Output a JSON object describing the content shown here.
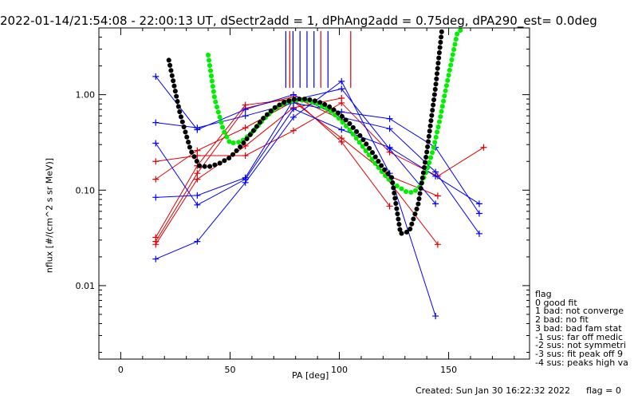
{
  "title": "2022-01-14/21:54:08 - 22:00:13 UT, dSectr2add = 1, dPhAng2add = 0.75deg, dPA290_est=    0.0deg",
  "chart_data": {
    "type": "line",
    "xlabel": "PA [deg]",
    "ylabel": "nflux [#/(cm^2 s sr MeV)]",
    "xlim": [
      -10,
      187
    ],
    "ylim": [
      0.0017,
      5.0
    ],
    "yscale": "log",
    "x_ticks": [
      0,
      50,
      100,
      150
    ],
    "y_ticks": [
      {
        "value": 0.01,
        "label": "0.01"
      },
      {
        "value": 0.1,
        "label": "0.10"
      },
      {
        "value": 1.0,
        "label": "1.00"
      }
    ],
    "series_colors": {
      "blue": "#0000ff",
      "red": "#e00000",
      "fit_black": "#000000",
      "fit_green": "#00ee00"
    },
    "blue_lines": [
      {
        "x": [
          16,
          35,
          57,
          79,
          101,
          123,
          144,
          164
        ],
        "y": [
          1.55,
          0.43,
          0.7,
          1.0,
          0.58,
          0.44,
          0.155,
          0.035
        ]
      },
      {
        "x": [
          16,
          35,
          57,
          79,
          101,
          123,
          144,
          164
        ],
        "y": [
          0.51,
          0.45,
          0.6,
          0.82,
          0.66,
          0.56,
          0.28,
          0.057
        ]
      },
      {
        "x": [
          16,
          35,
          57,
          79,
          101,
          123,
          144,
          164
        ],
        "y": [
          0.31,
          0.07,
          0.13,
          0.71,
          0.43,
          0.28,
          0.14,
          0.072
        ]
      },
      {
        "x": [
          16,
          35,
          57,
          79,
          101,
          123,
          144
        ],
        "y": [
          0.084,
          0.088,
          0.135,
          0.88,
          1.15,
          0.27,
          0.072
        ]
      },
      {
        "x": [
          16,
          35,
          57,
          79,
          101,
          123,
          144
        ],
        "y": [
          0.019,
          0.029,
          0.12,
          0.58,
          1.38,
          0.15,
          0.0048
        ]
      }
    ],
    "red_lines": [
      {
        "x": [
          16,
          35,
          57,
          79,
          101,
          123,
          145,
          166
        ],
        "y": [
          0.2,
          0.23,
          0.23,
          0.42,
          0.82,
          0.25,
          0.14,
          0.28
        ]
      },
      {
        "x": [
          16,
          35,
          57,
          79,
          101,
          123,
          145
        ],
        "y": [
          0.13,
          0.26,
          0.45,
          0.85,
          0.35,
          0.14,
          0.087
        ]
      },
      {
        "x": [
          16,
          35,
          57,
          79,
          101,
          123
        ],
        "y": [
          0.032,
          0.18,
          0.78,
          0.9,
          0.32,
          0.068
        ]
      },
      {
        "x": [
          16,
          35,
          57,
          79,
          101
        ],
        "y": [
          0.027,
          0.13,
          0.29,
          0.73,
          0.92
        ]
      },
      {
        "x": [
          16,
          35,
          57,
          79,
          101,
          145
        ],
        "y": [
          0.029,
          0.15,
          0.72,
          0.95,
          0.55,
          0.027
        ]
      }
    ],
    "fit_black": {
      "x": [
        22,
        27,
        32,
        36,
        40,
        45,
        50,
        55,
        60,
        65,
        70,
        75,
        80,
        85,
        90,
        95,
        100,
        105,
        110,
        115,
        120,
        124,
        128,
        132,
        136,
        140,
        144,
        147
      ],
      "y": [
        2.3,
        0.65,
        0.26,
        0.18,
        0.175,
        0.19,
        0.22,
        0.29,
        0.4,
        0.56,
        0.72,
        0.84,
        0.9,
        0.9,
        0.85,
        0.76,
        0.63,
        0.49,
        0.36,
        0.25,
        0.17,
        0.135,
        0.035,
        0.037,
        0.07,
        0.25,
        1.2,
        5.0
      ]
    },
    "fit_green": {
      "x": [
        40,
        43,
        47,
        50,
        55,
        60,
        65,
        70,
        75,
        80,
        85,
        90,
        95,
        100,
        105,
        110,
        115,
        120,
        124,
        128,
        131,
        134,
        137,
        140,
        143,
        146,
        148,
        150,
        152,
        154,
        157
      ],
      "y": [
        2.6,
        0.9,
        0.42,
        0.31,
        0.32,
        0.4,
        0.54,
        0.7,
        0.82,
        0.88,
        0.87,
        0.8,
        0.7,
        0.56,
        0.42,
        0.3,
        0.21,
        0.15,
        0.12,
        0.105,
        0.095,
        0.095,
        0.11,
        0.16,
        0.27,
        0.55,
        0.95,
        1.6,
        2.7,
        4.5,
        5.0
      ]
    },
    "marker_lines": [
      {
        "x": 75.5,
        "color": "#0000ff"
      },
      {
        "x": 77.3,
        "color": "#e00000"
      },
      {
        "x": 78.8,
        "color": "#0000ff"
      },
      {
        "x": 82.0,
        "color": "#0000ff"
      },
      {
        "x": 85.2,
        "color": "#0000ff"
      },
      {
        "x": 88.4,
        "color": "#0000ff"
      },
      {
        "x": 91.5,
        "color": "#e00000"
      },
      {
        "x": 94.8,
        "color": "#0000ff"
      },
      {
        "x": 105.2,
        "color": "#e00000"
      }
    ]
  },
  "legend": {
    "title": "flag",
    "items": [
      "0 good fit",
      "1 bad: not converge",
      "2 bad: no fit",
      "3 bad: bad fam stat",
      "-1 sus: far off medic",
      "-2 sus: not symmetri",
      "-3 sus: fit peak off 9",
      "-4 sus: peaks high va"
    ]
  },
  "footer": {
    "created": "Created: Sun Jan 30 16:22:32 2022",
    "flag": "flag = 0"
  }
}
